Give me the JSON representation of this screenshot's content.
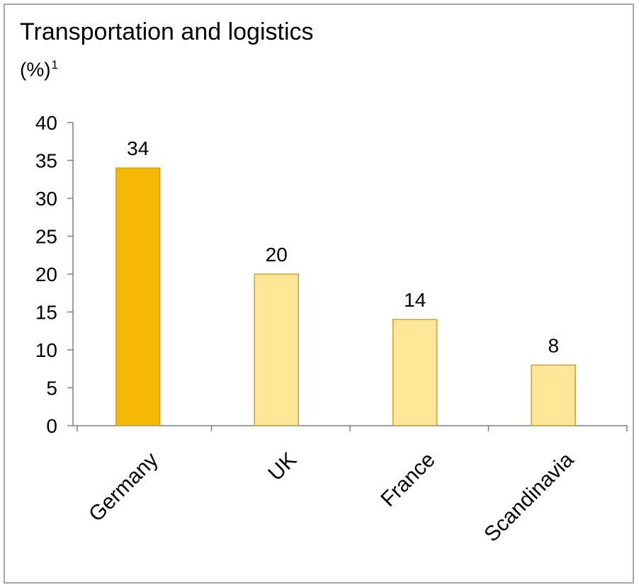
{
  "chart_title": "Transportation and logistics",
  "unit_label": "(%)",
  "unit_footnote": "1",
  "chart_data": {
    "type": "bar",
    "title": "Transportation and logistics",
    "ylabel": "(%)",
    "xlabel": "",
    "categories": [
      "Germany",
      "UK",
      "France",
      "Scandinavia"
    ],
    "values": [
      34,
      20,
      14,
      8
    ],
    "ylim": [
      0,
      40
    ],
    "yticks": [
      0,
      5,
      10,
      15,
      20,
      25,
      30,
      35,
      40
    ],
    "grid": false,
    "legend": "none",
    "highlight_index": 0,
    "colors": {
      "highlight_fill": "#f5b800",
      "bar_fill": "#ffe699",
      "bar_stroke": "#c9a235",
      "axis": "#7f7f7f"
    }
  }
}
